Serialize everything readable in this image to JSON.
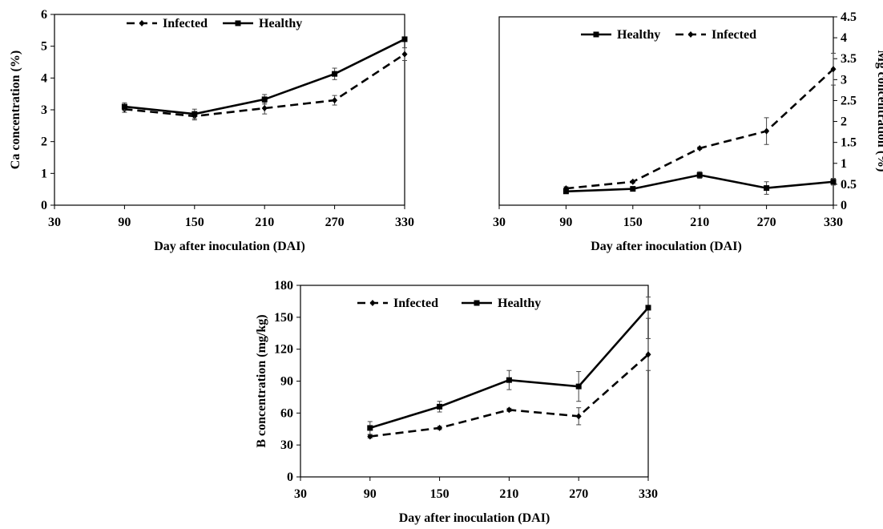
{
  "chart_data": [
    {
      "type": "line",
      "ylabel": "Ca concentration (%)",
      "xlabel": "Day after inoculation (DAI)",
      "xlim": [
        30,
        330
      ],
      "xticks": [
        30,
        90,
        150,
        210,
        270,
        330
      ],
      "ylim": [
        0,
        6
      ],
      "yticks": [
        0,
        1,
        2,
        3,
        4,
        5,
        6
      ],
      "ytick_labels": [
        "0",
        "1",
        "2",
        "3",
        "4",
        "5",
        "6"
      ],
      "y_axis_side": "left",
      "grid": false,
      "legend_position": "top-center",
      "x": [
        90,
        150,
        210,
        270,
        330
      ],
      "series": [
        {
          "name": "Infected",
          "style": "dashed",
          "marker": "diamond",
          "values": [
            3.02,
            2.8,
            3.05,
            3.3,
            4.75
          ],
          "errors": [
            0.1,
            0.12,
            0.18,
            0.15,
            0.2
          ]
        },
        {
          "name": "Healthy",
          "style": "solid",
          "marker": "square",
          "values": [
            3.1,
            2.87,
            3.33,
            4.13,
            5.22
          ],
          "errors": [
            0.12,
            0.15,
            0.15,
            0.18,
            0.05
          ]
        }
      ],
      "legend_order": [
        0,
        1
      ]
    },
    {
      "type": "line",
      "ylabel": "Mg concentration (%)",
      "xlabel": "Day after inoculation (DAI)",
      "xlim": [
        30,
        330
      ],
      "xticks": [
        30,
        90,
        150,
        210,
        270,
        330
      ],
      "ylim": [
        0,
        4.5
      ],
      "yticks": [
        0,
        0.5,
        1,
        1.5,
        2,
        2.5,
        3,
        3.5,
        4,
        4.5
      ],
      "ytick_labels": [
        "0",
        "0.5",
        "1",
        "1.5",
        "2",
        "2.5",
        "3",
        "3.5",
        "4",
        "4.5"
      ],
      "y_axis_side": "right",
      "grid": false,
      "legend_position": "top-center",
      "x": [
        90,
        150,
        210,
        270,
        330
      ],
      "series": [
        {
          "name": "Infected",
          "style": "dashed",
          "marker": "diamond",
          "values": [
            0.4,
            0.56,
            1.36,
            1.77,
            3.25
          ],
          "errors": [
            0.04,
            0.03,
            0.03,
            0.32,
            0.38
          ]
        },
        {
          "name": "Healthy",
          "style": "solid",
          "marker": "square",
          "values": [
            0.33,
            0.39,
            0.72,
            0.41,
            0.56
          ],
          "errors": [
            0.05,
            0.03,
            0.08,
            0.15,
            0.08
          ]
        }
      ],
      "legend_order": [
        1,
        0
      ]
    },
    {
      "type": "line",
      "ylabel": "B concentration (mg/kg)",
      "xlabel": "Day after inoculation (DAI)",
      "xlim": [
        30,
        330
      ],
      "xticks": [
        30,
        90,
        150,
        210,
        270,
        330
      ],
      "ylim": [
        0,
        180
      ],
      "yticks": [
        0,
        30,
        60,
        90,
        120,
        150,
        180
      ],
      "ytick_labels": [
        "0",
        "30",
        "60",
        "90",
        "120",
        "150",
        "180"
      ],
      "y_axis_side": "left",
      "grid": false,
      "legend_position": "top-center",
      "x": [
        90,
        150,
        210,
        270,
        330
      ],
      "series": [
        {
          "name": "Infected",
          "style": "dashed",
          "marker": "diamond",
          "values": [
            38,
            46,
            63,
            57,
            115
          ],
          "errors": [
            1.5,
            1.5,
            1.5,
            8,
            15
          ]
        },
        {
          "name": "Healthy",
          "style": "solid",
          "marker": "square",
          "values": [
            46,
            66,
            91,
            85,
            159
          ],
          "errors": [
            6,
            5,
            9,
            14,
            10
          ]
        }
      ],
      "legend_order": [
        0,
        1
      ]
    }
  ]
}
